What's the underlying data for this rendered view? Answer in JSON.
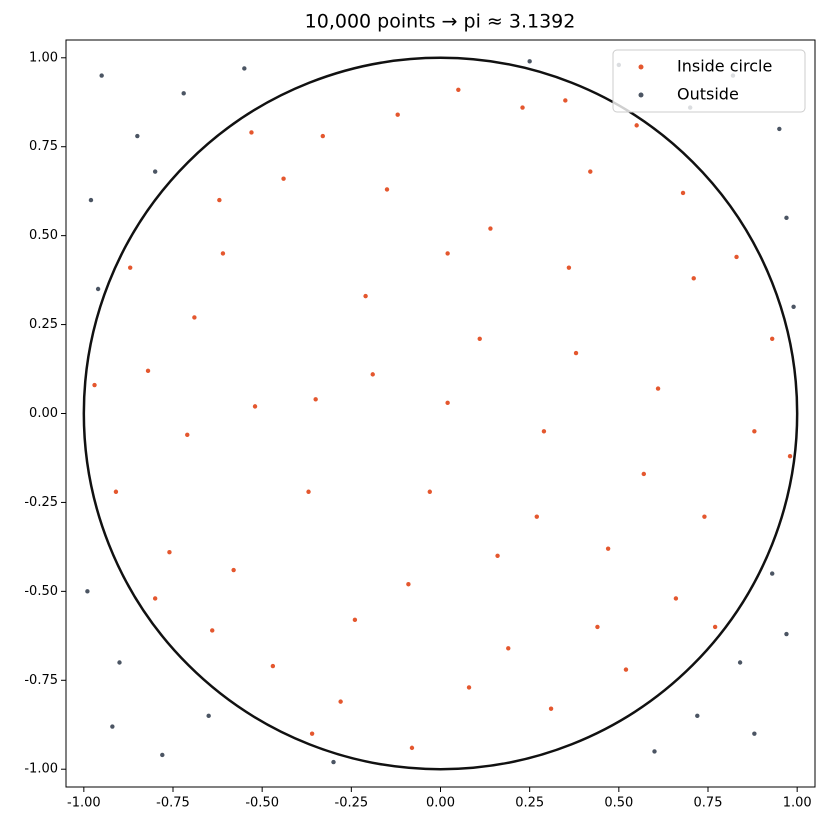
{
  "chart_data": {
    "type": "scatter",
    "title": "10,000 points → pi ≈ 3.1392",
    "xlim": [
      -1.05,
      1.05
    ],
    "ylim": [
      -1.05,
      1.05
    ],
    "xticks": [
      {
        "value": -1,
        "label": "-1.00"
      },
      -0.75,
      {
        "value": -0.5,
        "label": "-0.50"
      },
      -0.25,
      {
        "value": 0,
        "label": "0.00"
      },
      0.25,
      {
        "value": 0.5,
        "label": "0.50"
      },
      0.75,
      {
        "value": 1,
        "label": "1.00"
      }
    ],
    "yticks": [
      {
        "value": -1,
        "label": "-1.00"
      },
      -0.75,
      {
        "value": -0.5,
        "label": "-0.50"
      },
      -0.25,
      {
        "value": 0,
        "label": "0.00"
      },
      0.25,
      {
        "value": 0.5,
        "label": "0.50"
      },
      0.75,
      {
        "value": 1,
        "label": "1.00"
      }
    ],
    "grid": false,
    "legend": "upper right",
    "circle": {
      "radius": 1,
      "color": "#111111"
    },
    "series": [
      {
        "name": "Inside circle",
        "color": "#e4572e",
        "x": [
          -0.82,
          -0.61,
          -0.33,
          0.05,
          0.42,
          0.71,
          0.88,
          0.66,
          0.31,
          -0.08,
          -0.47,
          -0.76,
          -0.52,
          -0.21,
          0.14,
          0.38,
          0.27,
          -0.09,
          -0.37,
          0.02,
          0.55,
          -0.15,
          0.61,
          0.19,
          -0.64,
          0.83,
          -0.91,
          -0.28,
          0.47,
          -0.44,
          0.23,
          -0.69,
          0.74,
          -0.03,
          0.11,
          -0.58,
          0.36,
          -0.87,
          0.52,
          0.93,
          -0.24,
          0.08,
          -0.71,
          0.35,
          -0.12,
          0.68,
          -0.35,
          0.29,
          -0.53,
          0.77,
          -0.19,
          0.57,
          -0.8,
          0.16,
          -0.36,
          0.98,
          -0.97,
          0.02,
          0.44,
          -0.62
        ],
        "y": [
          0.12,
          0.45,
          0.78,
          0.91,
          0.68,
          0.38,
          -0.05,
          -0.52,
          -0.83,
          -0.94,
          -0.71,
          -0.39,
          0.02,
          0.33,
          0.52,
          0.17,
          -0.29,
          -0.48,
          -0.22,
          0.03,
          0.81,
          0.63,
          0.07,
          -0.66,
          -0.61,
          0.44,
          -0.22,
          -0.81,
          -0.38,
          0.66,
          0.86,
          0.27,
          -0.29,
          -0.22,
          0.21,
          -0.44,
          0.41,
          0.41,
          -0.72,
          0.21,
          -0.58,
          -0.77,
          -0.06,
          0.88,
          0.84,
          0.62,
          0.04,
          -0.05,
          0.79,
          -0.6,
          0.11,
          -0.17,
          -0.52,
          -0.4,
          -0.9,
          -0.12,
          0.08,
          0.45,
          -0.6,
          0.6
        ]
      },
      {
        "name": "Outside",
        "color": "#4b5563",
        "x": [
          -0.95,
          -0.85,
          -0.98,
          -0.72,
          0.82,
          0.95,
          0.7,
          0.97,
          -0.92,
          -0.78,
          -0.99,
          -0.65,
          0.88,
          0.97,
          0.72,
          0.6,
          -0.55,
          0.5,
          -0.9,
          0.93,
          -0.96,
          0.99,
          -0.3,
          0.25,
          -0.8,
          0.84
        ],
        "y": [
          0.95,
          0.78,
          0.6,
          0.9,
          0.95,
          0.8,
          0.86,
          0.55,
          -0.88,
          -0.96,
          -0.5,
          -0.85,
          -0.9,
          -0.62,
          -0.85,
          -0.95,
          0.97,
          0.98,
          -0.7,
          -0.45,
          0.35,
          0.3,
          -0.98,
          0.99,
          0.68,
          -0.7
        ]
      }
    ]
  }
}
